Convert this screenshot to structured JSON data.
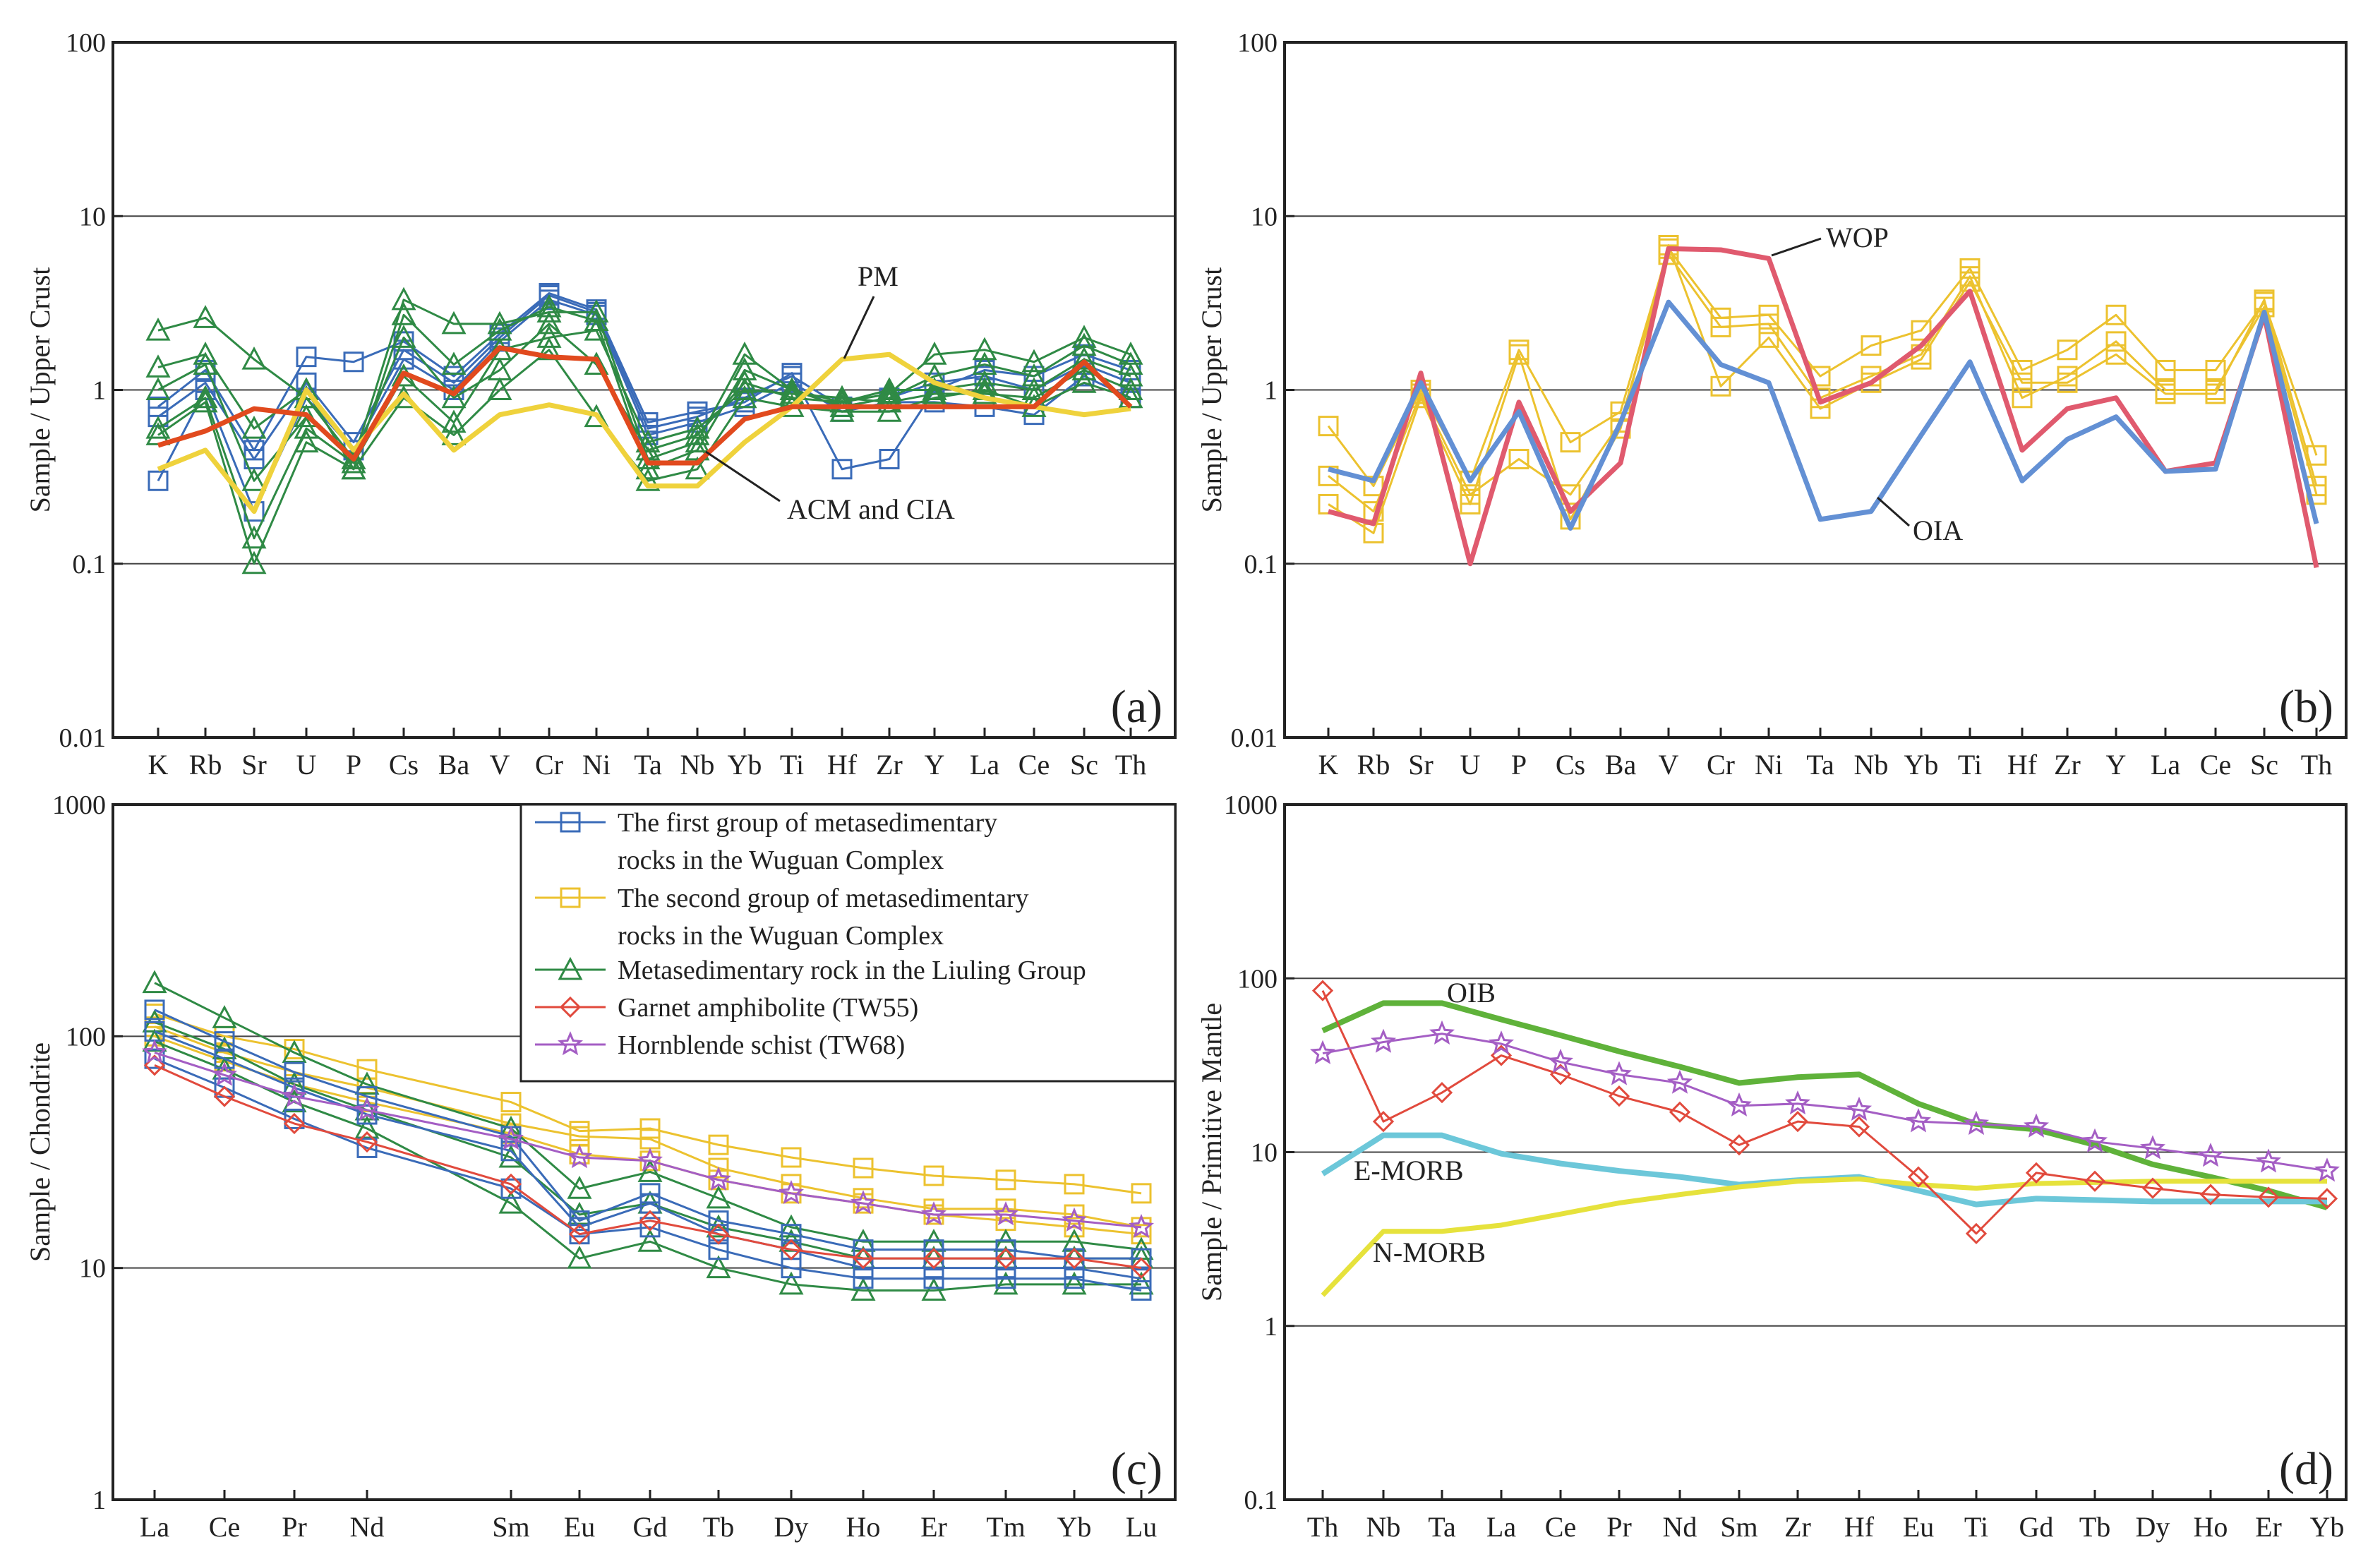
{
  "chart_data": [
    {
      "panel_label": "(a)",
      "type": "line",
      "y_scale": "log",
      "ylabel": "Sample / Upper Crust",
      "ylim": [
        0.01,
        100
      ],
      "y_ticks": [
        "0.01",
        "0.1",
        "1",
        "10",
        "100"
      ],
      "categories": [
        "K",
        "Rb",
        "Sr",
        "U",
        "P",
        "Cs",
        "Ba",
        "V",
        "Cr",
        "Ni",
        "Ta",
        "Nb",
        "Yb",
        "Ti",
        "Hf",
        "Zr",
        "Y",
        "La",
        "Ce",
        "Sc",
        "Th"
      ],
      "annotations": [
        "PM",
        "ACM and CIA"
      ],
      "series": [
        {
          "group": "first",
          "values": [
            0.8,
            1.3,
            0.45,
            1.55,
            1.45,
            1.9,
            1.2,
            2.1,
            3.6,
            2.9,
            0.65,
            0.75,
            0.85,
            1.25,
            0.35,
            0.4,
            1.0,
            1.3,
            1.2,
            1.6,
            1.3
          ]
        },
        {
          "group": "first",
          "values": [
            0.3,
            1.0,
            0.2,
            0.9,
            0.45,
            1.5,
            1.0,
            1.9,
            3.3,
            2.7,
            0.55,
            0.65,
            0.8,
            1.1,
            0.75,
            0.85,
            0.85,
            0.8,
            0.72,
            1.2,
            0.9
          ]
        },
        {
          "group": "first",
          "values": [
            0.7,
            1.1,
            0.4,
            1.1,
            0.5,
            1.7,
            1.1,
            2.0,
            3.5,
            2.8,
            0.6,
            0.7,
            0.9,
            1.2,
            0.8,
            0.9,
            1.1,
            1.2,
            1.0,
            1.4,
            1.1
          ]
        },
        {
          "group": "liuling",
          "values": [
            2.2,
            2.6,
            1.5,
            0.9,
            0.4,
            3.3,
            2.4,
            2.4,
            2.8,
            2.8,
            0.4,
            0.5,
            1.6,
            1.0,
            0.85,
            0.95,
            1.6,
            1.7,
            1.45,
            2.0,
            1.6
          ]
        },
        {
          "group": "liuling",
          "values": [
            1.35,
            1.6,
            0.6,
            1.0,
            0.35,
            2.7,
            1.4,
            2.2,
            3.0,
            2.5,
            0.35,
            0.45,
            1.3,
            1.0,
            0.8,
            0.9,
            1.2,
            1.4,
            1.2,
            1.8,
            1.4
          ]
        },
        {
          "group": "liuling",
          "values": [
            0.55,
            0.85,
            0.1,
            0.5,
            0.35,
            0.9,
            0.55,
            1.0,
            1.7,
            0.7,
            0.3,
            0.35,
            0.9,
            0.8,
            0.75,
            0.75,
            0.9,
            1.0,
            0.8,
            1.1,
            0.9
          ]
        },
        {
          "group": "liuling",
          "values": [
            1.0,
            1.4,
            0.3,
            0.7,
            0.4,
            2.0,
            0.9,
            1.3,
            2.4,
            1.4,
            0.45,
            0.55,
            1.1,
            0.9,
            0.85,
            1.0,
            1.0,
            1.1,
            1.0,
            1.5,
            1.2
          ]
        },
        {
          "group": "liuling",
          "values": [
            0.6,
            0.9,
            0.14,
            0.6,
            0.38,
            1.2,
            0.65,
            1.7,
            2.0,
            2.2,
            0.5,
            0.6,
            1.0,
            0.95,
            0.9,
            0.85,
            0.95,
            0.95,
            0.9,
            1.3,
            1.0
          ]
        },
        {
          "group": "pm",
          "values": [
            0.35,
            0.45,
            0.2,
            1.0,
            0.45,
            0.95,
            0.45,
            0.72,
            0.82,
            0.72,
            0.28,
            0.28,
            0.5,
            0.8,
            1.5,
            1.6,
            1.1,
            0.9,
            0.8,
            0.72,
            0.78
          ]
        },
        {
          "group": "acm",
          "values": [
            0.48,
            0.58,
            0.78,
            0.72,
            0.4,
            1.25,
            0.95,
            1.75,
            1.55,
            1.5,
            0.38,
            0.38,
            0.68,
            0.8,
            0.8,
            0.8,
            0.8,
            0.8,
            0.8,
            1.45,
            0.8
          ]
        }
      ]
    },
    {
      "panel_label": "(b)",
      "type": "line",
      "y_scale": "log",
      "ylabel": "Sample / Upper Crust",
      "ylim": [
        0.01,
        100
      ],
      "y_ticks": [
        "0.01",
        "0.1",
        "1",
        "10",
        "100"
      ],
      "categories": [
        "K",
        "Rb",
        "Sr",
        "U",
        "P",
        "Cs",
        "Ba",
        "V",
        "Cr",
        "Ni",
        "Ta",
        "Nb",
        "Yb",
        "Ti",
        "Hf",
        "Zr",
        "Y",
        "La",
        "Ce",
        "Sc",
        "Th"
      ],
      "annotations": [
        "WOP",
        "OIA"
      ],
      "series": [
        {
          "group": "second",
          "values": [
            0.62,
            0.28,
            1.0,
            0.3,
            1.7,
            0.5,
            0.75,
            6.5,
            2.6,
            2.7,
            1.2,
            1.8,
            2.2,
            5.0,
            1.3,
            1.7,
            2.7,
            1.3,
            1.3,
            3.2,
            0.42
          ]
        },
        {
          "group": "second",
          "values": [
            0.32,
            0.2,
            0.95,
            0.25,
            0.4,
            0.25,
            0.65,
            6.0,
            2.3,
            2.4,
            0.9,
            1.2,
            1.6,
            4.5,
            0.9,
            1.2,
            1.9,
            1.0,
            1.0,
            3.0,
            0.25
          ]
        },
        {
          "group": "second",
          "values": [
            0.22,
            0.15,
            0.9,
            0.22,
            1.6,
            0.18,
            0.6,
            6.8,
            1.05,
            2.0,
            0.78,
            1.1,
            1.5,
            4.2,
            1.1,
            1.1,
            1.6,
            0.95,
            0.95,
            3.3,
            0.28
          ]
        },
        {
          "group": "wop",
          "values": [
            0.2,
            0.17,
            1.25,
            0.1,
            0.85,
            0.2,
            0.38,
            6.5,
            6.4,
            5.7,
            0.85,
            1.1,
            1.8,
            3.7,
            0.45,
            0.78,
            0.9,
            0.34,
            0.38,
            2.7,
            0.095
          ]
        },
        {
          "group": "oia",
          "values": [
            0.35,
            0.3,
            1.1,
            0.3,
            0.75,
            0.16,
            0.65,
            3.2,
            1.4,
            1.1,
            0.18,
            0.2,
            0.55,
            1.45,
            0.3,
            0.52,
            0.7,
            0.34,
            0.35,
            2.8,
            0.17
          ]
        }
      ]
    },
    {
      "panel_label": "(c)",
      "type": "line",
      "y_scale": "log",
      "ylabel": "Sample / Chondrite",
      "ylim": [
        1,
        1000
      ],
      "y_ticks": [
        "1",
        "10",
        "100",
        "1000"
      ],
      "categories": [
        "La",
        "Ce",
        "Pr",
        "Nd",
        "Sm",
        "Eu",
        "Gd",
        "Tb",
        "Dy",
        "Ho",
        "Er",
        "Tm",
        "Yb",
        "Lu"
      ],
      "legend": [
        {
          "group": "first",
          "label_lines": [
            "The first group of metasedimentary",
            "rocks in the Wuguan Complex"
          ]
        },
        {
          "group": "second",
          "label_lines": [
            "The second group of metasedimentary",
            "rocks in the Wuguan Complex"
          ]
        },
        {
          "group": "liuling",
          "label_lines": [
            "Metasedimentary rock in the Liuling Group"
          ]
        },
        {
          "group": "garnet",
          "label_lines": [
            "Garnet amphibolite (TW55)"
          ]
        },
        {
          "group": "hornblende",
          "label_lines": [
            "Hornblende schist (TW68)"
          ]
        }
      ],
      "series": [
        {
          "group": "second",
          "values": [
            125,
            100,
            88,
            72,
            52,
            39,
            40,
            34,
            30,
            27,
            25,
            24,
            23,
            21
          ]
        },
        {
          "group": "second",
          "values": [
            110,
            85,
            70,
            60,
            42,
            37,
            36,
            27,
            23,
            20,
            18,
            18,
            17,
            15
          ]
        },
        {
          "group": "second",
          "values": [
            100,
            78,
            62,
            52,
            38,
            31,
            29,
            24,
            21,
            19,
            17,
            16,
            15,
            14
          ]
        },
        {
          "group": "liuling",
          "values": [
            170,
            120,
            85,
            62,
            40,
            22,
            26,
            20,
            15,
            13,
            13,
            13,
            13,
            12
          ]
        },
        {
          "group": "liuling",
          "values": [
            95,
            72,
            52,
            40,
            19,
            11,
            13,
            10,
            8.5,
            8,
            8,
            8.5,
            8.5,
            8.5
          ]
        },
        {
          "group": "liuling",
          "values": [
            115,
            88,
            62,
            48,
            30,
            17,
            19,
            15,
            13,
            11,
            11,
            11,
            11,
            11
          ]
        },
        {
          "group": "first",
          "values": [
            80,
            60,
            44,
            33,
            22,
            14,
            15,
            12,
            10,
            9,
            9,
            9,
            9,
            8
          ]
        },
        {
          "group": "first",
          "values": [
            130,
            95,
            70,
            55,
            37,
            16,
            21,
            16,
            14,
            12,
            12,
            12,
            11,
            11
          ]
        },
        {
          "group": "first",
          "values": [
            105,
            80,
            60,
            46,
            32,
            15,
            19,
            14,
            12,
            10,
            10,
            10,
            10,
            9
          ]
        },
        {
          "group": "garnet",
          "values": [
            75,
            55,
            42,
            35,
            23,
            14,
            16,
            14,
            12,
            11,
            11,
            11,
            11,
            10
          ]
        },
        {
          "group": "hornblende",
          "values": [
            85,
            68,
            55,
            48,
            36,
            30,
            29,
            24,
            21,
            19,
            17,
            17,
            16,
            15
          ]
        }
      ]
    },
    {
      "panel_label": "(d)",
      "type": "line",
      "y_scale": "log",
      "ylabel": "Sample / Primitive Mantle",
      "ylim": [
        0.1,
        1000
      ],
      "y_ticks": [
        "0.1",
        "1",
        "10",
        "100",
        "1000"
      ],
      "categories": [
        "Th",
        "Nb",
        "Ta",
        "La",
        "Ce",
        "Pr",
        "Nd",
        "Sm",
        "Zr",
        "Hf",
        "Eu",
        "Ti",
        "Gd",
        "Tb",
        "Dy",
        "Ho",
        "Er",
        "Yb"
      ],
      "annotations": [
        "OIB",
        "E-MORB",
        "N-MORB"
      ],
      "series": [
        {
          "group": "oib",
          "values": [
            50,
            72,
            72,
            58,
            47,
            38,
            31,
            25,
            27,
            28,
            19,
            14.5,
            13.5,
            11,
            8.5,
            7.2,
            6,
            4.8
          ]
        },
        {
          "group": "emorb",
          "values": [
            7.5,
            12.5,
            12.5,
            9.8,
            8.6,
            7.8,
            7.2,
            6.5,
            6.9,
            7.2,
            6,
            5,
            5.4,
            5.3,
            5.2,
            5.2,
            5.2,
            5.2
          ]
        },
        {
          "group": "nmorb",
          "values": [
            1.5,
            3.5,
            3.5,
            3.8,
            4.4,
            5.1,
            5.7,
            6.3,
            6.8,
            7,
            6.5,
            6.2,
            6.6,
            6.7,
            6.8,
            6.8,
            6.8,
            6.8
          ]
        },
        {
          "group": "garnet",
          "values": [
            85,
            15,
            22,
            36,
            28,
            21,
            17,
            11,
            15,
            14,
            7.2,
            3.4,
            7.6,
            6.8,
            6.2,
            5.7,
            5.5,
            5.4
          ]
        },
        {
          "group": "hornblende",
          "values": [
            37,
            43,
            48,
            42,
            33,
            28,
            25,
            18.5,
            19,
            17.5,
            15,
            14.5,
            14,
            11.5,
            10.5,
            9.5,
            8.8,
            7.8
          ]
        }
      ]
    }
  ],
  "colors": {
    "first": "#3a6bb8",
    "second": "#ecc22f",
    "liuling": "#2f8a45",
    "garnet": "#e14a3d",
    "hornblende": "#a45ec4",
    "pm": "#efd23c",
    "acm": "#e14a1e",
    "wop": "#e05a6e",
    "oia": "#6390d4",
    "oib": "#5fb23a",
    "emorb": "#6cc7d9",
    "nmorb": "#e6e23c"
  }
}
